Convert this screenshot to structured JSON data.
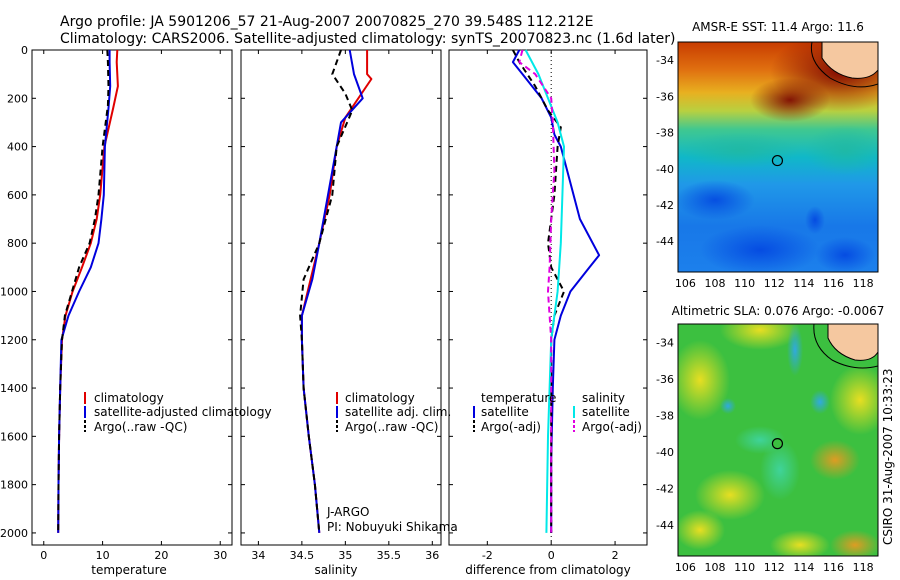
{
  "header": {
    "line1": "Argo profile: JA 5901206_57 21-Aug-2007 20070825_270 39.548S 112.212E",
    "line2": "Climatology: CARS2006. Satellite-adjusted climatology: synTS_20070823.nc (1.6d later)"
  },
  "footer": {
    "credit": "CSIRO 31-Aug-2007 10:33:23",
    "float_org": "J-ARGO",
    "pi": "PI: Nobuyuki Shikama"
  },
  "colors": {
    "climatology": "#e00000",
    "satellite": "#0000dd",
    "argo": "#000000",
    "sal_satellite": "#00e8e8",
    "sal_argo": "#e000e0"
  },
  "chart_data": [
    {
      "type": "line",
      "panel": "temperature",
      "xlabel": "temperature",
      "ylabel": "",
      "xlim": [
        -2,
        32
      ],
      "ylim": [
        2050,
        0
      ],
      "xticks": [
        0,
        10,
        20,
        30
      ],
      "yticks": [
        0,
        200,
        400,
        600,
        800,
        1000,
        1200,
        1400,
        1600,
        1800,
        2000
      ],
      "legend": [
        "climatology",
        "satellite-adjusted climatology",
        "Argo(..raw -QC)"
      ],
      "series": [
        {
          "name": "climatology",
          "color": "#e00000",
          "dash": "",
          "x": [
            12.5,
            12.4,
            12.6,
            11.8,
            10.3,
            9.6,
            9.0,
            8.0,
            6.5,
            4.9,
            3.7,
            3.1,
            2.8,
            2.6,
            2.5,
            2.45
          ],
          "y": [
            0,
            50,
            150,
            240,
            400,
            600,
            700,
            800,
            900,
            1000,
            1100,
            1200,
            1400,
            1600,
            1800,
            2000
          ]
        },
        {
          "name": "satellite",
          "color": "#0000dd",
          "dash": "",
          "x": [
            11.2,
            11.2,
            11.3,
            11.0,
            10.4,
            10.2,
            9.8,
            9.3,
            8.0,
            6.0,
            4.2,
            3.0,
            2.8,
            2.6,
            2.5,
            2.45
          ],
          "y": [
            0,
            50,
            150,
            240,
            400,
            600,
            700,
            800,
            900,
            1000,
            1100,
            1200,
            1400,
            1600,
            1800,
            2000
          ]
        },
        {
          "name": "Argo",
          "color": "#000000",
          "dash": "6,4",
          "x": [
            10.8,
            10.9,
            11.0,
            10.9,
            10.0,
            9.3,
            8.7,
            7.8,
            6.0,
            4.8,
            3.6,
            3.1,
            2.8,
            2.6,
            2.5,
            2.45
          ],
          "y": [
            0,
            50,
            150,
            230,
            400,
            600,
            700,
            800,
            900,
            1000,
            1100,
            1200,
            1400,
            1600,
            1800,
            2000
          ]
        }
      ]
    },
    {
      "type": "line",
      "panel": "salinity",
      "xlabel": "salinity",
      "ylabel": "",
      "xlim": [
        33.8,
        36.1
      ],
      "ylim": [
        2050,
        0
      ],
      "xticks": [
        34,
        34.5,
        35,
        35.5,
        36
      ],
      "legend": [
        "climatology",
        "satellite adj. clim.",
        "Argo(..raw -QC)"
      ],
      "series": [
        {
          "name": "climatology",
          "color": "#e00000",
          "dash": "",
          "x": [
            35.25,
            35.25,
            35.3,
            35.0,
            34.9,
            34.82,
            34.7,
            34.6,
            34.5,
            34.5,
            34.52,
            34.58,
            34.65,
            34.7
          ],
          "y": [
            0,
            100,
            120,
            280,
            400,
            600,
            800,
            950,
            1100,
            1200,
            1400,
            1600,
            1800,
            2000
          ]
        },
        {
          "name": "satellite",
          "color": "#0000dd",
          "dash": "",
          "x": [
            35.05,
            35.1,
            35.2,
            34.95,
            34.9,
            34.8,
            34.7,
            34.62,
            34.5,
            34.5,
            34.52,
            34.58,
            34.65,
            34.7
          ],
          "y": [
            0,
            100,
            200,
            300,
            400,
            600,
            800,
            950,
            1100,
            1200,
            1400,
            1600,
            1800,
            2000
          ]
        },
        {
          "name": "Argo",
          "color": "#000000",
          "dash": "6,4",
          "x": [
            34.95,
            34.85,
            35.0,
            35.08,
            34.9,
            34.85,
            34.7,
            34.52,
            34.48,
            34.5,
            34.52,
            34.58,
            34.65,
            34.7
          ],
          "y": [
            0,
            100,
            180,
            250,
            400,
            600,
            800,
            950,
            1100,
            1200,
            1400,
            1600,
            1800,
            2000
          ]
        }
      ]
    },
    {
      "type": "line",
      "panel": "difference",
      "xlabel": "difference from climatology",
      "ylabel": "",
      "xlim": [
        -3.2,
        3.0
      ],
      "ylim": [
        2050,
        0
      ],
      "xticks": [
        -2,
        0,
        2
      ],
      "legend_groups": [
        {
          "title": "temperature",
          "items": [
            "satellite",
            "Argo(-adj)"
          ]
        },
        {
          "title": "salinity",
          "items": [
            "satellite",
            "Argo(-adj)"
          ]
        }
      ],
      "series": [
        {
          "name": "temperature satellite",
          "color": "#0000dd",
          "dash": "",
          "x": [
            -1.0,
            -1.2,
            -0.9,
            -0.3,
            0.0,
            0.1,
            0.3,
            0.5,
            0.9,
            1.5,
            1.2,
            0.6,
            0.3,
            0.1,
            0.05,
            0.0,
            0.0
          ],
          "y": [
            0,
            50,
            100,
            200,
            280,
            350,
            400,
            500,
            700,
            850,
            900,
            1000,
            1100,
            1200,
            1400,
            1700,
            2000
          ]
        },
        {
          "name": "temperature Argo(-adj)",
          "color": "#000000",
          "dash": "6,4",
          "x": [
            -1.2,
            -1.0,
            -0.5,
            -0.1,
            0.3,
            0.2,
            0.1,
            0.0,
            -0.1,
            0.0,
            0.2,
            0.4,
            0.1,
            0.0,
            0.0
          ],
          "y": [
            0,
            50,
            150,
            250,
            320,
            400,
            600,
            700,
            800,
            900,
            950,
            1000,
            1100,
            1200,
            2000
          ]
        },
        {
          "name": "salinity satellite",
          "color": "#00e8e8",
          "dash": "",
          "x": [
            -0.8,
            -0.4,
            -0.1,
            0.2,
            0.4,
            0.35,
            0.3,
            0.2,
            0.0,
            -0.1,
            -0.15
          ],
          "y": [
            0,
            100,
            200,
            300,
            400,
            600,
            800,
            1000,
            1200,
            1600,
            2000
          ]
        },
        {
          "name": "salinity Argo(-adj)",
          "color": "#e000e0",
          "dash": "6,4",
          "x": [
            -0.9,
            -1.0,
            -0.5,
            0.0,
            0.05,
            0.1,
            0.0,
            -0.05,
            -0.1,
            0.0,
            0.0
          ],
          "y": [
            0,
            50,
            100,
            200,
            300,
            500,
            700,
            900,
            1000,
            1200,
            2000
          ]
        }
      ]
    },
    {
      "type": "heatmap",
      "panel": "map-sst",
      "title": "AMSR-E SST: 11.4 Argo: 11.6",
      "xlim": [
        105.5,
        119
      ],
      "ylim": [
        -45.7,
        -33
      ],
      "xticks": [
        106,
        108,
        110,
        112,
        114,
        116,
        118
      ],
      "yticks": [
        -34,
        -36,
        -38,
        -40,
        -42,
        -44
      ],
      "marker": {
        "lon": 112.212,
        "lat": -39.548
      }
    },
    {
      "type": "heatmap",
      "panel": "map-sla",
      "title": "Altimetric SLA: 0.076 Argo: -0.0067",
      "xlim": [
        105.5,
        119
      ],
      "ylim": [
        -45.7,
        -33
      ],
      "xticks": [
        106,
        108,
        110,
        112,
        114,
        116,
        118
      ],
      "yticks": [
        -34,
        -36,
        -38,
        -40,
        -42,
        -44
      ],
      "marker": {
        "lon": 112.212,
        "lat": -39.548
      }
    }
  ]
}
